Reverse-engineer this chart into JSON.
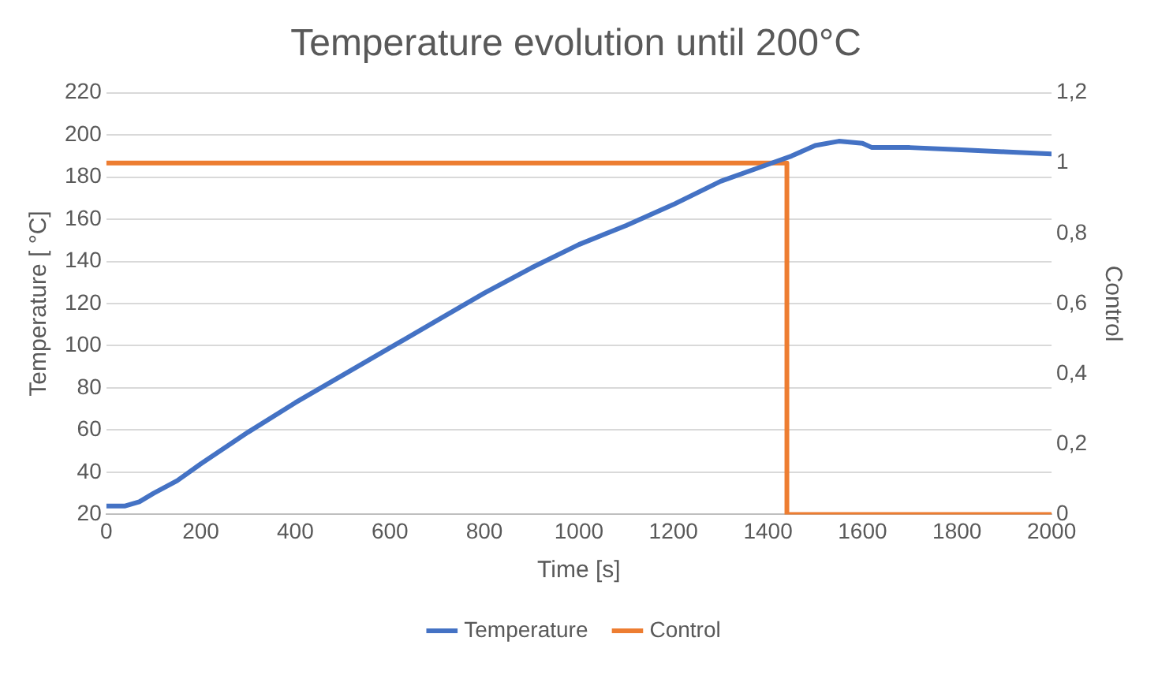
{
  "chart_data": {
    "type": "line",
    "title": "Temperature evolution until 200°C",
    "xlabel": "Time [s]",
    "ylabel": "Temperature [ °C]",
    "y2label": "Control",
    "xlim": [
      0,
      2000
    ],
    "xticks": [
      0,
      200,
      400,
      600,
      800,
      1000,
      1200,
      1400,
      1600,
      1800,
      2000
    ],
    "ylim": [
      20,
      220
    ],
    "yticks": [
      20,
      40,
      60,
      80,
      100,
      120,
      140,
      160,
      180,
      200,
      220
    ],
    "y2lim": [
      0,
      1.2
    ],
    "y2ticks": [
      0,
      {
        "value": 0.2,
        "label": "0,2"
      },
      {
        "value": 0.4,
        "label": "0,4"
      },
      {
        "value": 0.6,
        "label": "0,6"
      },
      {
        "value": 0.8,
        "label": "0,8"
      },
      1,
      {
        "value": 1.2,
        "label": "1,2"
      }
    ],
    "grid": "y",
    "legend": "bottom",
    "series": [
      {
        "name": "Temperature",
        "color": "#4472c4",
        "x": [
          0,
          40,
          70,
          100,
          150,
          200,
          300,
          400,
          500,
          600,
          700,
          800,
          900,
          1000,
          1100,
          1200,
          1300,
          1400,
          1450,
          1500,
          1550,
          1600,
          1620,
          1700,
          1800,
          1900,
          2000
        ],
        "values": [
          24,
          24,
          26,
          30,
          36,
          44,
          59,
          73,
          86,
          99,
          112,
          125,
          137,
          148,
          157,
          167,
          178,
          186,
          190,
          195,
          197,
          196,
          194,
          194,
          193,
          192,
          191
        ]
      },
      {
        "name": "Control",
        "color": "#ed7d31",
        "axis": "y2",
        "x": [
          0,
          1440,
          1440,
          2000
        ],
        "values": [
          1,
          1,
          0,
          0
        ]
      }
    ]
  }
}
